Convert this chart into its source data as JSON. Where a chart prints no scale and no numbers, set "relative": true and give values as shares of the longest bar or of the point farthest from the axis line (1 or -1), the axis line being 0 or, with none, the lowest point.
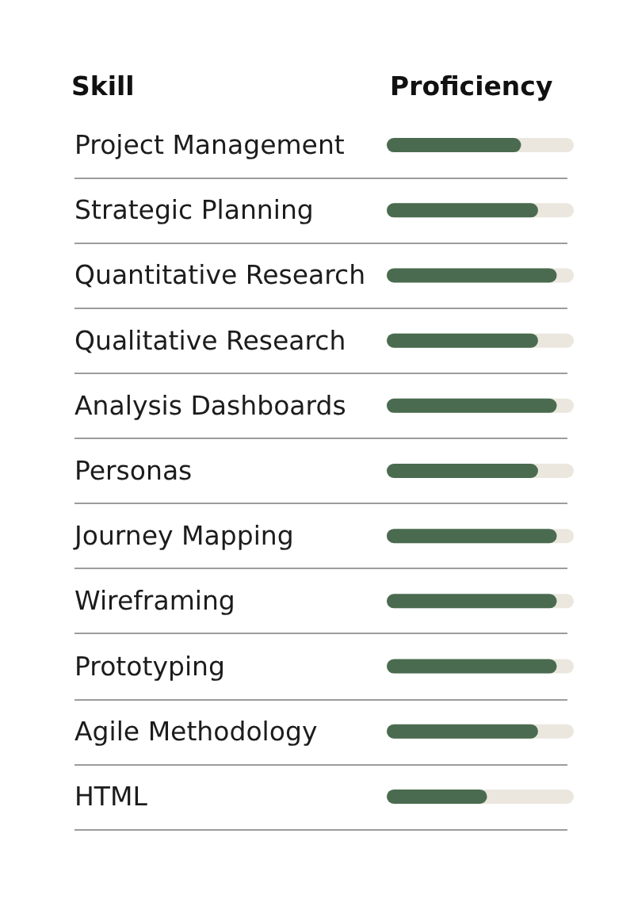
{
  "chart_data": {
    "type": "bar",
    "orientation": "horizontal",
    "relative": true,
    "xlabel": "Proficiency",
    "ylabel": "Skill",
    "categories": [
      "Project Management",
      "Strategic Planning",
      "Quantitative Research",
      "Qualitative Research",
      "Analysis Dashboards",
      "Personas",
      "Journey Mapping",
      "Wireframing",
      "Prototyping",
      "Agile Methodology",
      "HTML"
    ],
    "values": [
      0.79,
      0.89,
      1,
      0.89,
      1,
      0.89,
      1,
      1,
      1,
      0.89,
      0.59
    ],
    "color": "#4a6b4f",
    "grid": "y"
  }
}
